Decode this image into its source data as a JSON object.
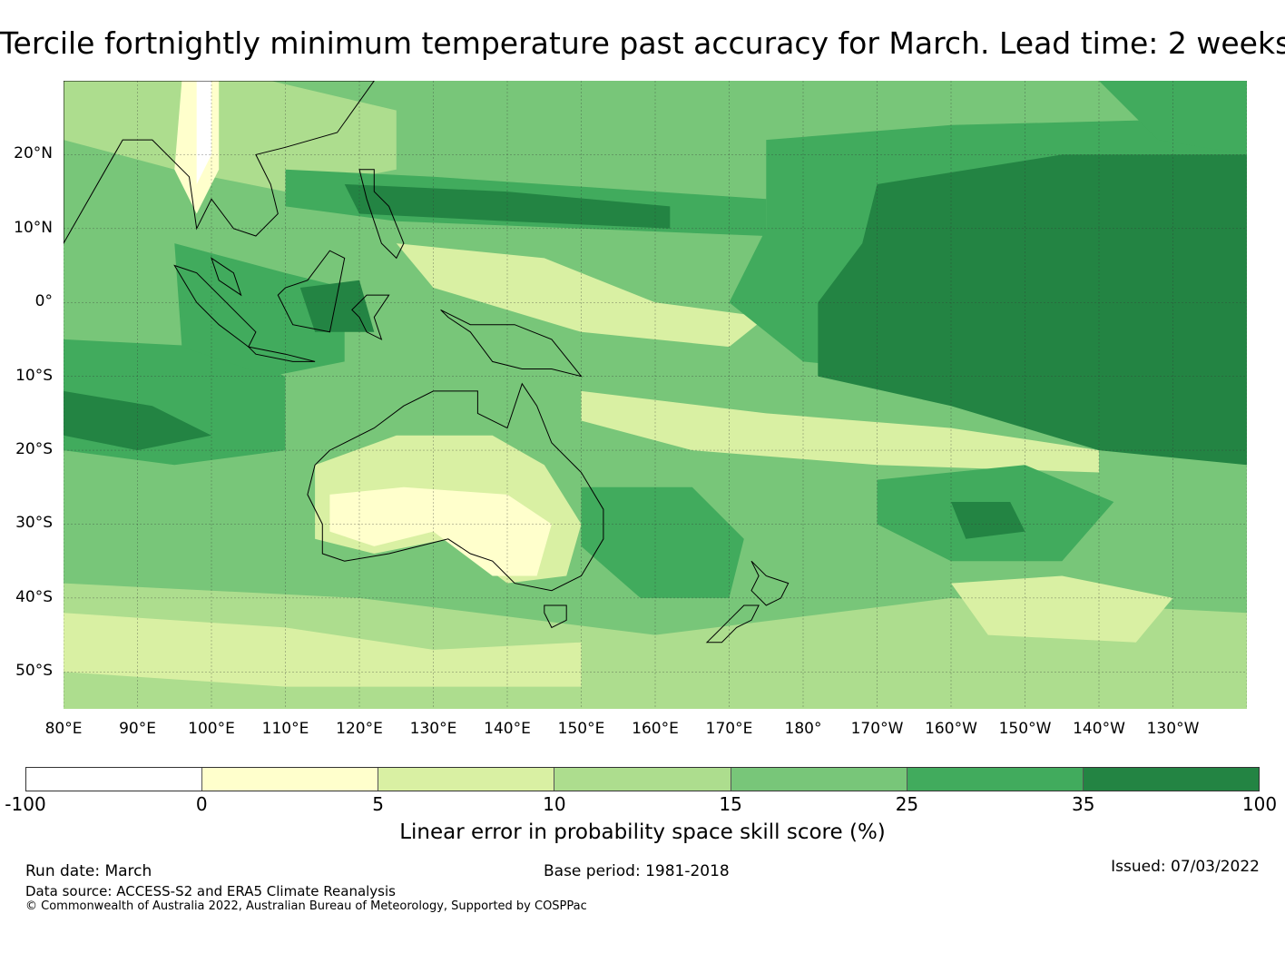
{
  "title": "Tercile fortnightly minimum temperature past accuracy for March. Lead time: 2 weeks",
  "map": {
    "lat_labels": [
      "20°N",
      "10°N",
      "0°",
      "10°S",
      "20°S",
      "30°S",
      "40°S",
      "50°S"
    ],
    "lon_labels": [
      "80°E",
      "90°E",
      "100°E",
      "110°E",
      "120°E",
      "130°E",
      "140°E",
      "150°E",
      "160°E",
      "170°E",
      "180°",
      "170°W",
      "160°W",
      "150°W",
      "140°W",
      "130°W"
    ],
    "extent": {
      "lon_min": 80,
      "lon_max": 240,
      "lat_min": -55,
      "lat_max": 30
    },
    "colors": [
      "#ffffff",
      "#ffffcc",
      "#d9f0a3",
      "#addd8e",
      "#78c679",
      "#41ab5d",
      "#238443"
    ]
  },
  "colorbar": {
    "ticks": [
      "-100",
      "0",
      "5",
      "10",
      "15",
      "25",
      "35",
      "100"
    ],
    "label": "Linear error in probability space skill score (%)"
  },
  "footer": {
    "run_date": "Run date: March",
    "base_period": "Base period: 1981-2018",
    "issued": "Issued: 07/03/2022",
    "data_source": "Data source: ACCESS-S2 and ERA5 Climate Reanalysis",
    "copyright": "© Commonwealth of Australia 2022, Australian Bureau of Meteorology, Supported by COSPPac"
  }
}
